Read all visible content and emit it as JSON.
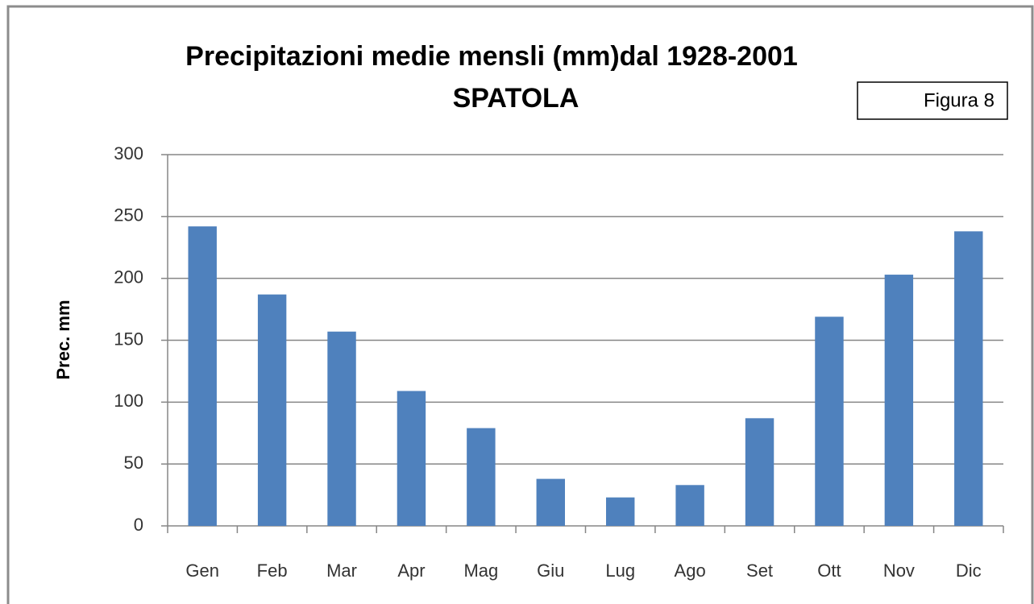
{
  "chart_data": {
    "type": "bar",
    "title": "Precipitazioni medie mensli (mm)dal 1928-2001",
    "subtitle": "SPATOLA",
    "annotation": "Figura 8",
    "y_label": "Prec. mm",
    "categories": [
      "Gen",
      "Feb",
      "Mar",
      "Apr",
      "Mag",
      "Giu",
      "Lug",
      "Ago",
      "Set",
      "Ott",
      "Nov",
      "Dic"
    ],
    "values": [
      242,
      187,
      157,
      109,
      79,
      38,
      23,
      33,
      87,
      169,
      203,
      238
    ],
    "color": "#4f81bd",
    "ylim": [
      0,
      300
    ],
    "yticks": [
      0,
      50,
      100,
      150,
      200,
      250,
      300
    ],
    "grid": true
  }
}
